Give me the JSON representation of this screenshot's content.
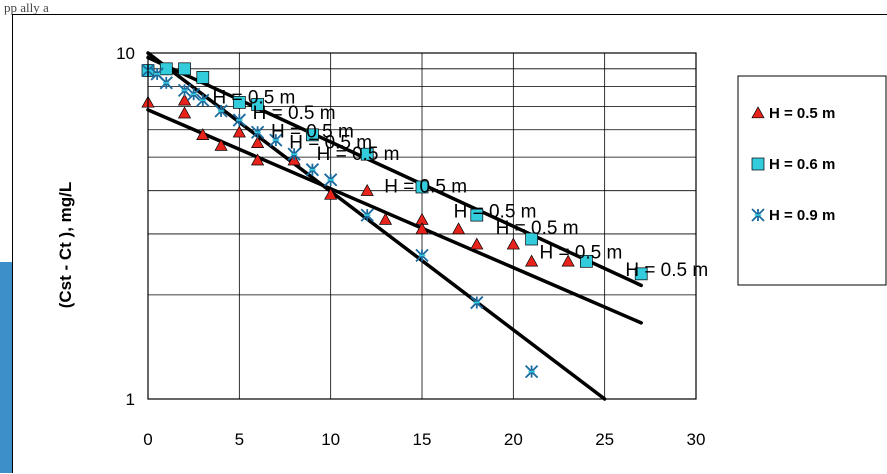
{
  "page": {
    "top_text": "pp ally a"
  },
  "chart_data": {
    "type": "scatter",
    "title": "",
    "xlabel": "",
    "ylabel": "(Cst -  Ct ), mg/L",
    "x_scale": "linear",
    "y_scale": "log",
    "xlim": [
      0,
      30
    ],
    "ylim": [
      1,
      10
    ],
    "x_ticks": [
      "0",
      "5",
      "10",
      "15",
      "20",
      "25",
      "30"
    ],
    "y_ticks": [
      "1",
      "10"
    ],
    "grid": true,
    "legend_position": "right",
    "colors": {
      "triangle_fill": "#e8231c",
      "square_fill": "#33ccdd",
      "star_color": "#1b6a9e",
      "line": "#000000",
      "plot_border": "#000000"
    },
    "series": [
      {
        "name": "H = 0.5 m",
        "marker": "triangle",
        "x": [
          0,
          2,
          2,
          3,
          4,
          5,
          6,
          6,
          8,
          10,
          12,
          13,
          15,
          15,
          17,
          18,
          20,
          21,
          23
        ],
        "y": [
          7.2,
          7.3,
          6.7,
          5.8,
          5.4,
          5.9,
          5.5,
          4.9,
          4.9,
          3.9,
          4.0,
          3.3,
          3.3,
          3.1,
          3.1,
          2.8,
          2.8,
          2.5,
          2.5
        ],
        "fit": {
          "x": [
            0,
            27
          ],
          "y": [
            6.85,
            1.66
          ]
        }
      },
      {
        "name": "H = 0.6 m",
        "marker": "square",
        "x": [
          0,
          1,
          2,
          3,
          5,
          6,
          9,
          12,
          15,
          18,
          21,
          24,
          27
        ],
        "y": [
          8.9,
          9.0,
          9.0,
          8.5,
          7.2,
          7.1,
          5.8,
          5.1,
          4.1,
          3.4,
          2.9,
          2.5,
          2.3
        ],
        "fit": {
          "x": [
            0,
            27
          ],
          "y": [
            9.7,
            2.13
          ]
        }
      },
      {
        "name": "H = 0.9 m",
        "marker": "star",
        "x": [
          0,
          0.5,
          1,
          2,
          2.5,
          3,
          4,
          5,
          6,
          7,
          8,
          9,
          10,
          12,
          15,
          18,
          21
        ],
        "y": [
          8.9,
          8.7,
          8.2,
          7.8,
          7.6,
          7.3,
          6.8,
          6.4,
          5.9,
          5.6,
          5.1,
          4.6,
          4.3,
          3.4,
          2.6,
          1.9,
          1.2
        ],
        "fit": {
          "x": [
            0,
            25
          ],
          "y": [
            10.0,
            1.0
          ]
        }
      }
    ],
    "annotations": [
      {
        "text": "H = 0.5 m",
        "x": 5.8,
        "y": 7.15
      },
      {
        "text": "H = 0.5 m",
        "x": 8.0,
        "y": 6.45
      },
      {
        "text": "H = 0.5 m",
        "x": 9.0,
        "y": 5.7
      },
      {
        "text": "H = 0.5 m",
        "x": 10.0,
        "y": 5.3
      },
      {
        "text": "H = 0.5 m",
        "x": 11.5,
        "y": 4.9
      },
      {
        "text": "H = 0.5 m",
        "x": 15.2,
        "y": 3.95
      },
      {
        "text": "H = 0.5 m",
        "x": 19.0,
        "y": 3.35
      },
      {
        "text": "H = 0.5 m",
        "x": 21.3,
        "y": 3.0
      },
      {
        "text": "H = 0.5 m",
        "x": 23.7,
        "y": 2.55
      },
      {
        "text": "H = 0.5 m",
        "x": 28.4,
        "y": 2.27
      }
    ]
  }
}
